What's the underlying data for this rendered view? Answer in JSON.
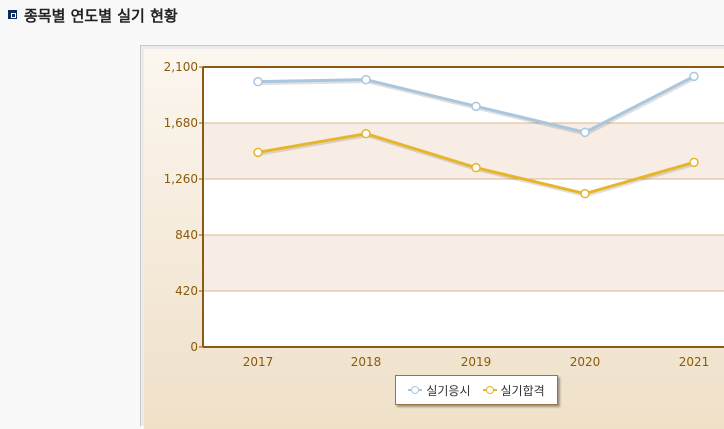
{
  "page": {
    "title": "종목별 연도별 실기 현황"
  },
  "icons": {
    "title_bullet": "square-bullet-icon"
  },
  "colors": {
    "plot_border": "#8b5a14",
    "tick_text": "#8a5a0b",
    "band": "#f8ede4",
    "grid": "#d9b98a",
    "series1": "#a9c6df",
    "series2": "#e6b52a"
  },
  "chart_data": {
    "type": "line",
    "categories": [
      "2017",
      "2018",
      "2019",
      "2020",
      "2021"
    ],
    "series": [
      {
        "name": "실기응시",
        "values": [
          1990,
          2005,
          1805,
          1610,
          2030
        ]
      },
      {
        "name": "실기합격",
        "values": [
          1460,
          1600,
          1345,
          1150,
          1385
        ]
      }
    ],
    "yticks": [
      "0",
      "420",
      "840",
      "1,260",
      "1,680",
      "2,100"
    ],
    "ylim": [
      0,
      2100
    ],
    "grid": true,
    "legend_position": "bottom"
  }
}
